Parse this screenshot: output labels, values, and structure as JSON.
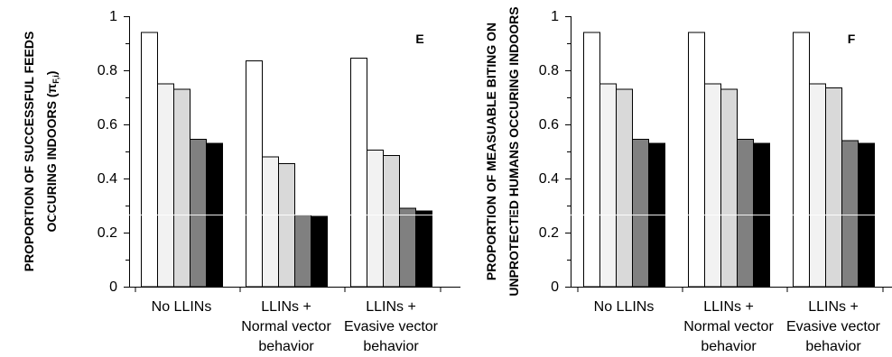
{
  "chart_data": [
    {
      "type": "bar",
      "panel_label": "E",
      "ylabel_lines": [
        "PROPORTION OF SUCCESSFUL FEEDS",
        "OCCURING INDOORS (π",
        "F,i",
        ")"
      ],
      "ylim": [
        0,
        1
      ],
      "yticks": [
        "0",
        "0.2",
        "0.4",
        "0.6",
        "0.8",
        "1"
      ],
      "categories": [
        [
          "No LLINs"
        ],
        [
          "LLINs +",
          "Normal vector",
          "behavior"
        ],
        [
          "LLINs +",
          "Evasive vector",
          "behavior"
        ]
      ],
      "series": [
        {
          "color": "#ffffff",
          "values": [
            0.94,
            0.835,
            0.845
          ]
        },
        {
          "color": "#f2f2f2",
          "values": [
            0.75,
            0.48,
            0.505
          ]
        },
        {
          "color": "#d9d9d9",
          "values": [
            0.73,
            0.455,
            0.485
          ]
        },
        {
          "color": "#808080",
          "values": [
            0.545,
            0.265,
            0.29
          ]
        },
        {
          "color": "#000000",
          "values": [
            0.53,
            0.26,
            0.28
          ]
        }
      ],
      "grid": false
    },
    {
      "type": "bar",
      "panel_label": "F",
      "ylabel_lines": [
        "PROPORTION OF MEASUABLE BITING ON",
        "UNPROTECTED HUMANS OCCURING INDOORS"
      ],
      "ylim": [
        0,
        1
      ],
      "yticks": [
        "0",
        "0.2",
        "0.4",
        "0.6",
        "0.8",
        "1"
      ],
      "categories": [
        [
          "No LLINs"
        ],
        [
          "LLINs +",
          "Normal vector",
          "behavior"
        ],
        [
          "LLINs +",
          "Evasive vector",
          "behavior"
        ]
      ],
      "series": [
        {
          "color": "#ffffff",
          "values": [
            0.94,
            0.94,
            0.94
          ]
        },
        {
          "color": "#f2f2f2",
          "values": [
            0.75,
            0.75,
            0.75
          ]
        },
        {
          "color": "#d9d9d9",
          "values": [
            0.73,
            0.73,
            0.735
          ]
        },
        {
          "color": "#808080",
          "values": [
            0.545,
            0.545,
            0.54
          ]
        },
        {
          "color": "#000000",
          "values": [
            0.53,
            0.53,
            0.53
          ]
        }
      ],
      "grid": false
    }
  ]
}
